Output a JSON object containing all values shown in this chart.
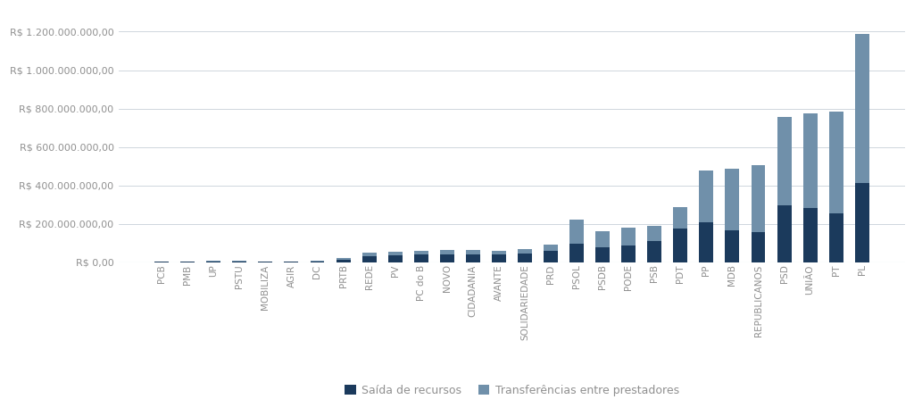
{
  "categories": [
    "PCB",
    "PMB",
    "UP",
    "PSTU",
    "MOBILIZA",
    "AGIR",
    "DC",
    "PRTB",
    "REDE",
    "PV",
    "PC do B",
    "NOVO",
    "CIDADANIA",
    "AVANTE",
    "SOLIDARIEDADE",
    "PRD",
    "PSOL",
    "PSDB",
    "PODE",
    "PSB",
    "PDT",
    "PP",
    "MDB",
    "REPUBLICANOS",
    "PSD",
    "UNIÃO",
    "PT",
    "PL"
  ],
  "saida": [
    500000,
    1500000,
    2000000,
    2500000,
    2000000,
    3000000,
    5000000,
    12000000,
    32000000,
    35000000,
    38000000,
    40000000,
    40000000,
    38000000,
    45000000,
    60000000,
    95000000,
    75000000,
    85000000,
    110000000,
    175000000,
    205000000,
    165000000,
    155000000,
    295000000,
    280000000,
    255000000,
    410000000
  ],
  "transferencias": [
    1000000,
    2500000,
    3500000,
    3500000,
    3000000,
    2000000,
    3000000,
    8000000,
    18000000,
    20000000,
    22000000,
    22000000,
    22000000,
    22000000,
    25000000,
    30000000,
    125000000,
    85000000,
    95000000,
    80000000,
    110000000,
    270000000,
    320000000,
    350000000,
    460000000,
    495000000,
    530000000,
    780000000
  ],
  "color_saida": "#1b3a5c",
  "color_transferencias": "#7090aa",
  "legend_saida": "Saída de recursos",
  "legend_transferencias": "Transferências entre prestadores",
  "ylim": [
    0,
    1300000000
  ],
  "yticks": [
    0,
    200000000,
    400000000,
    600000000,
    800000000,
    1000000000,
    1200000000
  ],
  "background_color": "#ffffff",
  "grid_color": "#c8d0d8",
  "font_color": "#909090"
}
